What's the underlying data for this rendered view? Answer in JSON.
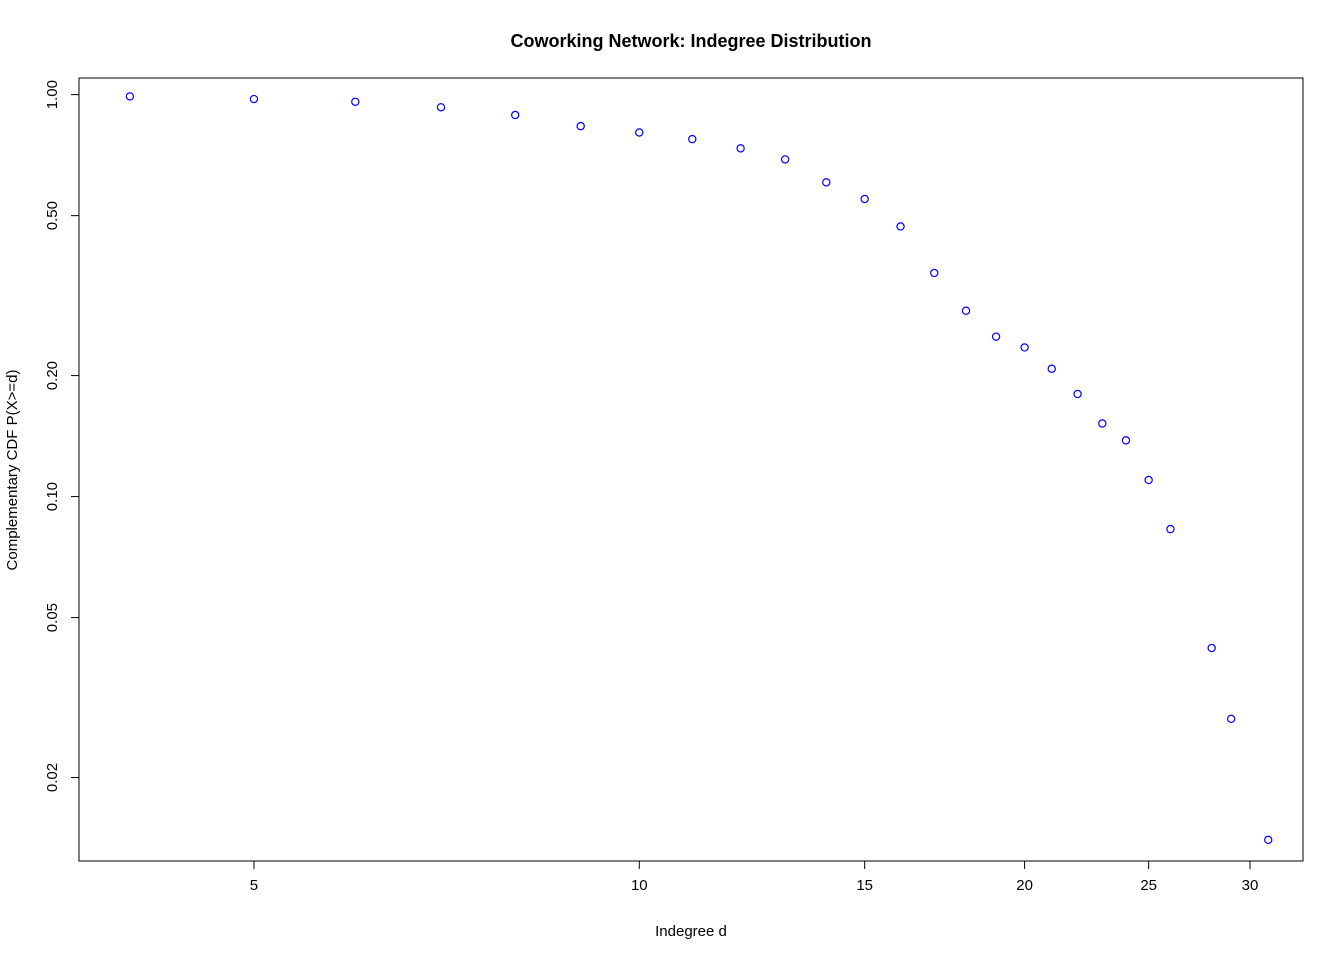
{
  "chart_data": {
    "type": "scatter",
    "title": "Coworking Network: Indegree Distribution",
    "xlabel": "Indegree d",
    "ylabel": "Complementary CDF P(X>=d)",
    "x_scale": "log",
    "y_scale": "log",
    "xlim": [
      3.65,
      33.0
    ],
    "ylim": [
      0.0124,
      1.1
    ],
    "x_ticks": [
      5,
      10,
      15,
      20,
      25,
      30
    ],
    "x_tick_labels": [
      "5",
      "10",
      "15",
      "20",
      "25",
      "30"
    ],
    "y_ticks": [
      1.0,
      0.5,
      0.2,
      0.1,
      0.05,
      0.02
    ],
    "y_tick_labels": [
      "1.00",
      "0.50",
      "0.20",
      "0.10",
      "0.05",
      "0.02"
    ],
    "grid": false,
    "marker_color": "#0000ff",
    "series": [
      {
        "x": [
          4,
          5,
          6,
          7,
          8,
          9,
          10,
          11,
          12,
          13,
          14,
          15,
          16,
          17,
          18,
          19,
          20,
          21,
          22,
          23,
          24,
          25,
          26,
          28,
          29,
          31
        ],
        "y": [
          0.99,
          0.975,
          0.96,
          0.93,
          0.89,
          0.835,
          0.805,
          0.775,
          0.735,
          0.69,
          0.605,
          0.55,
          0.47,
          0.36,
          0.29,
          0.25,
          0.235,
          0.208,
          0.18,
          0.152,
          0.138,
          0.11,
          0.083,
          0.042,
          0.028,
          0.014
        ]
      }
    ]
  }
}
